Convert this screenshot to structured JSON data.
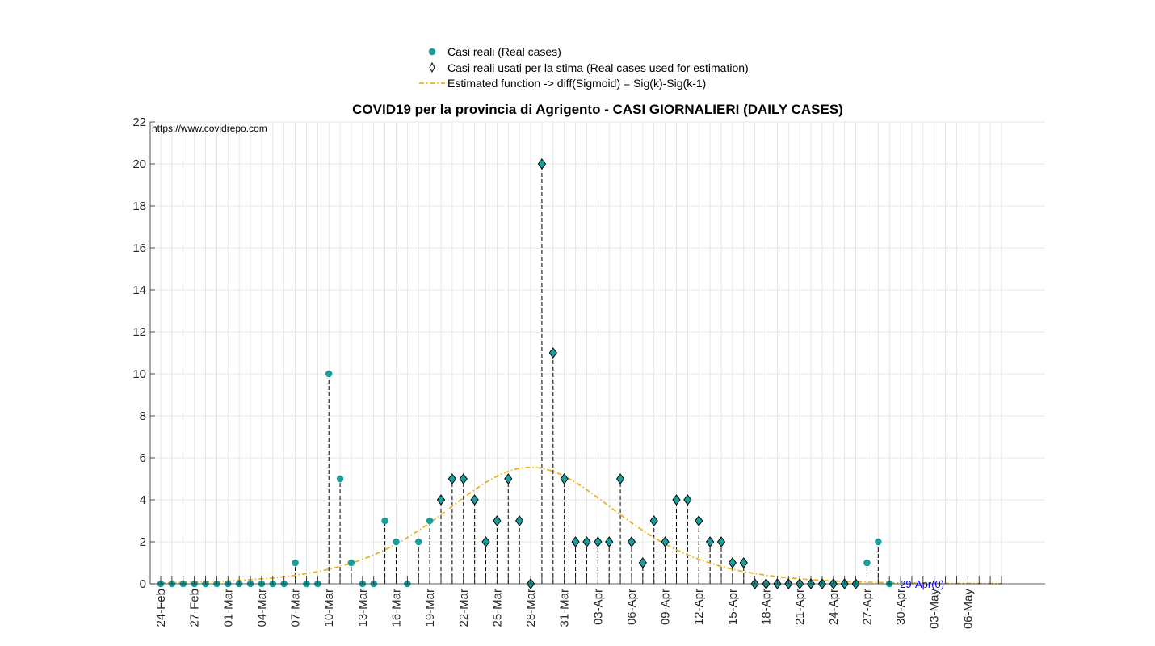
{
  "chart_data": {
    "type": "scatter",
    "title": "COVID19 per la provincia di Agrigento - CASI GIORNALIERI (DAILY CASES)",
    "watermark": "https://www.covidrepo.com",
    "xlabel": "",
    "ylabel": "",
    "ylim": [
      0,
      22
    ],
    "yticks": [
      0,
      2,
      4,
      6,
      8,
      10,
      12,
      14,
      16,
      18,
      20,
      22
    ],
    "xlim": [
      "24-Feb",
      "09-May"
    ],
    "grid": true,
    "legend_position": "top-center",
    "x_tick_labels": [
      "24-Feb",
      "27-Feb",
      "01-Mar",
      "04-Mar",
      "07-Mar",
      "10-Mar",
      "13-Mar",
      "16-Mar",
      "19-Mar",
      "22-Mar",
      "25-Mar",
      "28-Mar",
      "31-Mar",
      "03-Apr",
      "06-Apr",
      "09-Apr",
      "12-Apr",
      "15-Apr",
      "18-Apr",
      "21-Apr",
      "24-Apr",
      "27-Apr",
      "30-Apr",
      "03-May",
      "06-May"
    ],
    "legend": [
      {
        "label": "Casi reali (Real cases)",
        "marker": "circle"
      },
      {
        "label": "Casi reali usati per la stima (Real cases used for estimation)",
        "marker": "diamond"
      },
      {
        "label": "Estimated function -> diff(Sigmoid) = Sig(k)-Sig(k-1)",
        "marker": "dashdot-line"
      }
    ],
    "series": [
      {
        "name": "Casi reali (Real cases)",
        "x": [
          "24-Feb",
          "25-Feb",
          "26-Feb",
          "27-Feb",
          "28-Feb",
          "29-Feb",
          "01-Mar",
          "02-Mar",
          "03-Mar",
          "04-Mar",
          "05-Mar",
          "06-Mar",
          "07-Mar",
          "08-Mar",
          "09-Mar",
          "10-Mar",
          "11-Mar",
          "12-Mar",
          "13-Mar",
          "14-Mar",
          "15-Mar",
          "16-Mar",
          "17-Mar",
          "18-Mar",
          "19-Mar",
          "27-Apr",
          "28-Apr",
          "29-Apr"
        ],
        "y": [
          0,
          0,
          0,
          0,
          0,
          0,
          0,
          0,
          0,
          0,
          0,
          0,
          1,
          0,
          0,
          10,
          5,
          1,
          0,
          0,
          3,
          2,
          0,
          2,
          3,
          1,
          2,
          0
        ]
      },
      {
        "name": "Casi reali usati per la stima (Real cases used for estimation)",
        "x": [
          "20-Mar",
          "21-Mar",
          "22-Mar",
          "23-Mar",
          "24-Mar",
          "25-Mar",
          "26-Mar",
          "27-Mar",
          "28-Mar",
          "29-Mar",
          "30-Mar",
          "31-Mar",
          "01-Apr",
          "02-Apr",
          "03-Apr",
          "04-Apr",
          "05-Apr",
          "06-Apr",
          "07-Apr",
          "08-Apr",
          "09-Apr",
          "10-Apr",
          "11-Apr",
          "12-Apr",
          "13-Apr",
          "14-Apr",
          "15-Apr",
          "16-Apr",
          "17-Apr",
          "18-Apr",
          "19-Apr",
          "20-Apr",
          "21-Apr",
          "22-Apr",
          "23-Apr",
          "24-Apr",
          "25-Apr",
          "26-Apr"
        ],
        "y": [
          4,
          5,
          5,
          4,
          2,
          3,
          5,
          3,
          0,
          20,
          11,
          5,
          2,
          2,
          2,
          2,
          5,
          2,
          1,
          3,
          2,
          4,
          4,
          3,
          2,
          2,
          1,
          1,
          0,
          0,
          0,
          0,
          0,
          0,
          0,
          0,
          0,
          0
        ]
      },
      {
        "name": "Estimated function -> diff(Sigmoid) = Sig(k)-Sig(k-1)",
        "x_start": "24-Feb",
        "x_end": "09-May",
        "peak_date": "28-Mar",
        "peak_value": 5.55,
        "spread_days": 10.6
      }
    ],
    "annotations": [
      {
        "x": "29-Apr",
        "y": 0,
        "text": "29-Apr(0)"
      }
    ]
  },
  "colors": {
    "real_cases": "#1a9e9c",
    "marker_edge": "#000000",
    "fit_line": "#EDB120",
    "stem": "#000000",
    "grid": "#e0e0e0",
    "annotation": "#0000ff"
  }
}
